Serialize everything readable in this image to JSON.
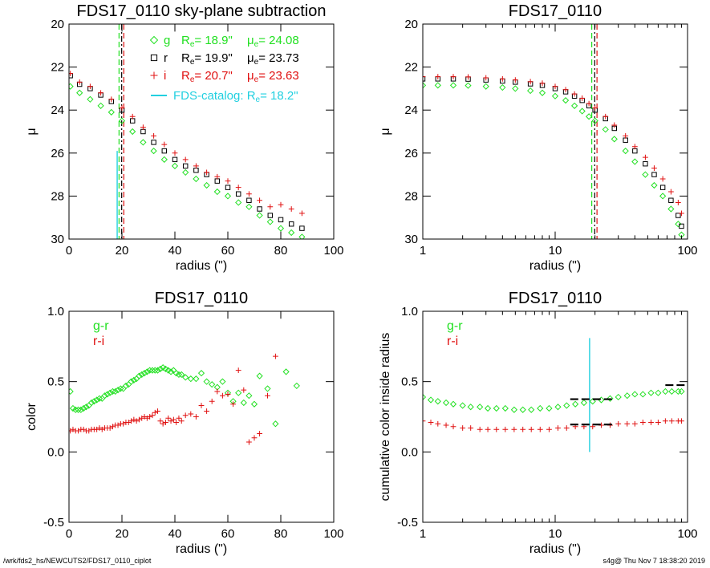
{
  "figure": {
    "footer_left": "/wrk/fds2_hs/NEWCUTS2/FDS17_0110_ciplot",
    "footer_right": "s4g@  Thu Nov  7 18:38:20 2019"
  },
  "colors": {
    "g": "#22e022",
    "r": "#000000",
    "i": "#e01010",
    "catalog": "#22d0e0",
    "axis": "#000000"
  },
  "chart_data": [
    {
      "id": "tl",
      "type": "scatter",
      "title": "FDS17_0110 sky-plane subtraction",
      "xlabel": "radius (\")",
      "ylabel": "μ",
      "xscale": "linear",
      "xlim": [
        0,
        100
      ],
      "ylim": [
        30,
        20
      ],
      "xticks": [
        0,
        20,
        40,
        60,
        80,
        100
      ],
      "xticklabels": [
        "0",
        "20",
        "40",
        "60",
        "80",
        "100"
      ],
      "yticks": [
        20,
        22,
        24,
        26,
        28,
        30
      ],
      "yticklabels": [
        "20",
        "22",
        "24",
        "26",
        "28",
        "30"
      ],
      "series": [
        {
          "name": "g",
          "marker": "diamond",
          "color_key": "g",
          "x": [
            0.5,
            4,
            8,
            12,
            16,
            20,
            24,
            28,
            32,
            36,
            40,
            44,
            48,
            52,
            56,
            60,
            64,
            68,
            72,
            76,
            80,
            84,
            88
          ],
          "y": [
            22.9,
            23.2,
            23.5,
            23.8,
            24.1,
            24.5,
            25.0,
            25.5,
            25.9,
            26.3,
            26.6,
            26.9,
            27.2,
            27.5,
            27.8,
            28.0,
            28.3,
            28.5,
            28.9,
            29.2,
            29.5,
            29.7,
            29.9
          ]
        },
        {
          "name": "r",
          "marker": "square",
          "color_key": "r",
          "x": [
            0.5,
            4,
            8,
            12,
            16,
            20,
            24,
            28,
            32,
            36,
            40,
            44,
            48,
            52,
            56,
            60,
            64,
            68,
            72,
            76,
            80,
            84,
            88
          ],
          "y": [
            22.4,
            22.8,
            23.0,
            23.3,
            23.6,
            24.0,
            24.5,
            25.0,
            25.5,
            25.9,
            26.3,
            26.6,
            26.8,
            27.0,
            27.3,
            27.6,
            27.9,
            28.2,
            28.6,
            28.9,
            29.1,
            29.3,
            29.5
          ]
        },
        {
          "name": "i",
          "marker": "plus",
          "color_key": "i",
          "x": [
            0.5,
            4,
            8,
            12,
            16,
            20,
            24,
            28,
            32,
            36,
            40,
            44,
            48,
            52,
            56,
            60,
            64,
            68,
            72,
            76,
            80,
            84,
            88
          ],
          "y": [
            22.3,
            22.7,
            22.9,
            23.2,
            23.5,
            23.9,
            24.3,
            24.8,
            25.2,
            25.6,
            26.0,
            26.3,
            26.6,
            26.9,
            27.1,
            27.3,
            27.6,
            27.9,
            28.2,
            28.5,
            28.4,
            28.6,
            28.8
          ]
        }
      ],
      "vlines": [
        {
          "x": 18.9,
          "color_key": "g",
          "style": "dash"
        },
        {
          "x": 19.9,
          "color_key": "r",
          "style": "dashdot"
        },
        {
          "x": 20.7,
          "color_key": "i",
          "style": "dash"
        }
      ],
      "catalog_line": {
        "x": 18.2,
        "y_from": 25.9,
        "y_to": 30
      },
      "legend": {
        "entries": [
          {
            "band": "g",
            "Re": "18.9\"",
            "mue": "24.08",
            "color_key": "g",
            "marker": "diamond"
          },
          {
            "band": "r",
            "Re": "19.9\"",
            "mue": "23.73",
            "color_key": "r",
            "marker": "square"
          },
          {
            "band": "i",
            "Re": "20.7\"",
            "mue": "23.63",
            "color_key": "i",
            "marker": "plus"
          }
        ],
        "catalog_label": "FDS-catalog: R",
        "catalog_value": "=  18.2\"",
        "re_prefix": "R",
        "mue_prefix": "μ",
        "sub": "e",
        "eq": "= "
      }
    },
    {
      "id": "tr",
      "type": "scatter",
      "title": "FDS17_0110",
      "xlabel": "radius (\")",
      "ylabel": "μ",
      "xscale": "log",
      "xlim": [
        1,
        100
      ],
      "ylim": [
        30,
        20
      ],
      "xticks": [
        1,
        10,
        100
      ],
      "xticklabels": [
        "1",
        "10",
        "100"
      ],
      "yticks": [
        20,
        22,
        24,
        26,
        28,
        30
      ],
      "yticklabels": [
        "20",
        "22",
        "24",
        "26",
        "28",
        "30"
      ],
      "series": [
        {
          "name": "g",
          "marker": "diamond",
          "color_key": "g",
          "x": [
            1,
            1.3,
            1.7,
            2.2,
            3,
            4,
            5,
            6.5,
            8,
            10,
            12,
            14,
            16,
            18,
            20,
            24,
            28,
            34,
            40,
            48,
            56,
            65,
            75,
            85,
            90
          ],
          "y": [
            22.85,
            22.85,
            22.85,
            22.86,
            22.9,
            22.95,
            23.0,
            23.1,
            23.2,
            23.35,
            23.55,
            23.8,
            24.05,
            24.3,
            24.5,
            24.9,
            25.35,
            25.9,
            26.4,
            27.0,
            27.5,
            28.0,
            28.6,
            29.3,
            29.8
          ]
        },
        {
          "name": "r",
          "marker": "square",
          "color_key": "r",
          "x": [
            1,
            1.3,
            1.7,
            2.2,
            3,
            4,
            5,
            6.5,
            8,
            10,
            12,
            14,
            16,
            18,
            20,
            24,
            28,
            34,
            40,
            48,
            56,
            65,
            75,
            85,
            90
          ],
          "y": [
            22.55,
            22.55,
            22.55,
            22.56,
            22.6,
            22.65,
            22.7,
            22.78,
            22.85,
            23.0,
            23.15,
            23.35,
            23.55,
            23.8,
            24.0,
            24.4,
            24.85,
            25.4,
            25.9,
            26.5,
            27.0,
            27.6,
            28.2,
            28.9,
            29.4
          ]
        },
        {
          "name": "i",
          "marker": "plus",
          "color_key": "i",
          "x": [
            1,
            1.3,
            1.7,
            2.2,
            3,
            4,
            5,
            6.5,
            8,
            10,
            12,
            14,
            16,
            18,
            20,
            24,
            28,
            34,
            40,
            48,
            56,
            65,
            75,
            85,
            90
          ],
          "y": [
            22.45,
            22.45,
            22.45,
            22.46,
            22.5,
            22.55,
            22.6,
            22.68,
            22.75,
            22.9,
            23.05,
            23.25,
            23.45,
            23.7,
            23.9,
            24.3,
            24.7,
            25.2,
            25.7,
            26.2,
            26.7,
            27.2,
            27.8,
            28.3,
            28.8
          ]
        }
      ],
      "vlines": [
        {
          "x": 18.9,
          "color_key": "g",
          "style": "dash"
        },
        {
          "x": 19.9,
          "color_key": "r",
          "style": "dashdot"
        },
        {
          "x": 20.7,
          "color_key": "i",
          "style": "dash"
        }
      ]
    },
    {
      "id": "bl",
      "type": "scatter",
      "title": "FDS17_0110",
      "xlabel": "radius (\")",
      "ylabel": "color",
      "xscale": "linear",
      "xlim": [
        0,
        100
      ],
      "ylim": [
        -0.5,
        1.0
      ],
      "xticks": [
        0,
        20,
        40,
        60,
        80,
        100
      ],
      "xticklabels": [
        "0",
        "20",
        "40",
        "60",
        "80",
        "100"
      ],
      "yticks": [
        -0.5,
        0,
        0.5,
        1.0
      ],
      "yticklabels": [
        "-0.5",
        "0.0",
        "0.5",
        "1.0"
      ],
      "series": [
        {
          "name": "g-r",
          "marker": "diamond",
          "color_key": "g",
          "x": [
            0.5,
            1.5,
            2.5,
            3.5,
            4.5,
            5.5,
            6.5,
            7.5,
            8.5,
            9.5,
            10.5,
            11.5,
            12.5,
            13.5,
            14.5,
            15.5,
            16.5,
            17.5,
            18.5,
            19.5,
            20.5,
            21.5,
            22.5,
            23.5,
            24.5,
            25.5,
            26.5,
            27.5,
            28.5,
            29.5,
            30.5,
            31.5,
            32.5,
            33.5,
            34.5,
            35.5,
            36.5,
            37.5,
            38.5,
            39.5,
            40.5,
            41.5,
            42.5,
            44,
            46,
            48,
            50,
            52,
            54,
            56,
            58,
            60,
            62,
            64,
            66,
            68,
            70,
            72,
            75,
            78,
            82,
            86
          ],
          "y": [
            0.43,
            0.31,
            0.3,
            0.3,
            0.3,
            0.31,
            0.32,
            0.33,
            0.35,
            0.36,
            0.37,
            0.38,
            0.38,
            0.4,
            0.41,
            0.42,
            0.43,
            0.43,
            0.44,
            0.45,
            0.45,
            0.47,
            0.48,
            0.5,
            0.51,
            0.52,
            0.54,
            0.55,
            0.56,
            0.57,
            0.58,
            0.58,
            0.58,
            0.58,
            0.59,
            0.6,
            0.59,
            0.58,
            0.57,
            0.58,
            0.56,
            0.55,
            0.55,
            0.53,
            0.52,
            0.52,
            0.56,
            0.5,
            0.48,
            0.46,
            0.5,
            0.42,
            0.36,
            0.42,
            0.35,
            0.4,
            0.34,
            0.54,
            0.45,
            0.2,
            0.57,
            0.47
          ]
        },
        {
          "name": "r-i",
          "marker": "plus",
          "color_key": "i",
          "x": [
            0.5,
            1.5,
            2.5,
            3.5,
            4.5,
            5.5,
            6.5,
            7.5,
            8.5,
            9.5,
            10.5,
            11.5,
            12.5,
            13.5,
            14.5,
            15.5,
            16.5,
            17.5,
            18.5,
            19.5,
            20.5,
            21.5,
            22.5,
            23.5,
            24.5,
            25.5,
            26.5,
            27.5,
            28.5,
            29.5,
            30.5,
            31.5,
            32.5,
            33.5,
            34.5,
            35.5,
            36.5,
            37.5,
            38.5,
            39.5,
            40.5,
            41.5,
            42.5,
            44,
            46,
            48,
            50,
            52,
            54,
            56,
            58,
            60,
            62,
            64,
            66,
            68,
            70,
            72,
            75,
            78
          ],
          "y": [
            0.15,
            0.16,
            0.15,
            0.15,
            0.16,
            0.16,
            0.15,
            0.15,
            0.16,
            0.16,
            0.16,
            0.17,
            0.16,
            0.17,
            0.17,
            0.17,
            0.18,
            0.19,
            0.19,
            0.2,
            0.2,
            0.21,
            0.21,
            0.22,
            0.23,
            0.22,
            0.23,
            0.24,
            0.25,
            0.24,
            0.25,
            0.26,
            0.28,
            0.29,
            0.22,
            0.2,
            0.21,
            0.24,
            0.22,
            0.23,
            0.21,
            0.24,
            0.22,
            0.26,
            0.27,
            0.25,
            0.33,
            0.29,
            0.36,
            0.43,
            0.4,
            0.41,
            0.34,
            0.58,
            0.44,
            0.07,
            0.1,
            0.13,
            0.4,
            0.68
          ]
        }
      ],
      "legend": {
        "entries": [
          {
            "label": "g-r",
            "color_key": "g"
          },
          {
            "label": "r-i",
            "color_key": "i"
          }
        ]
      }
    },
    {
      "id": "br",
      "type": "scatter",
      "title": "FDS17_0110",
      "xlabel": "radius (\")",
      "ylabel": "cumulative color inside radius",
      "xscale": "log",
      "xlim": [
        1,
        100
      ],
      "ylim": [
        -0.5,
        1.0
      ],
      "xticks": [
        1,
        10,
        100
      ],
      "xticklabels": [
        "1",
        "10",
        "100"
      ],
      "yticks": [
        -0.5,
        0,
        0.5,
        1.0
      ],
      "yticklabels": [
        "-0.5",
        "0.0",
        "0.5",
        "1.0"
      ],
      "series": [
        {
          "name": "g-r",
          "marker": "diamond",
          "color_key": "g",
          "x": [
            1,
            1.15,
            1.3,
            1.5,
            1.7,
            2,
            2.3,
            2.7,
            3.1,
            3.6,
            4.2,
            4.9,
            5.7,
            6.6,
            7.7,
            9,
            10.5,
            12.2,
            14.2,
            16.5,
            19.2,
            22.3,
            26,
            30,
            35,
            40,
            46,
            53,
            60,
            68,
            76,
            85,
            90
          ],
          "y": [
            0.39,
            0.37,
            0.36,
            0.35,
            0.34,
            0.33,
            0.32,
            0.32,
            0.31,
            0.31,
            0.31,
            0.3,
            0.3,
            0.3,
            0.31,
            0.31,
            0.32,
            0.33,
            0.34,
            0.35,
            0.36,
            0.37,
            0.38,
            0.39,
            0.4,
            0.41,
            0.41,
            0.42,
            0.42,
            0.43,
            0.43,
            0.43,
            0.43
          ]
        },
        {
          "name": "r-i",
          "marker": "plus",
          "color_key": "i",
          "x": [
            1,
            1.15,
            1.3,
            1.5,
            1.7,
            2,
            2.3,
            2.7,
            3.1,
            3.6,
            4.2,
            4.9,
            5.7,
            6.6,
            7.7,
            9,
            10.5,
            12.2,
            14.2,
            16.5,
            19.2,
            22.3,
            26,
            30,
            35,
            40,
            46,
            53,
            60,
            68,
            76,
            85,
            90
          ],
          "y": [
            0.22,
            0.21,
            0.2,
            0.19,
            0.18,
            0.17,
            0.17,
            0.16,
            0.16,
            0.16,
            0.16,
            0.16,
            0.16,
            0.16,
            0.16,
            0.16,
            0.17,
            0.17,
            0.18,
            0.18,
            0.18,
            0.19,
            0.19,
            0.2,
            0.2,
            0.2,
            0.21,
            0.21,
            0.21,
            0.22,
            0.22,
            0.22,
            0.22
          ]
        }
      ],
      "hbars": [
        {
          "x1": 13,
          "x2": 27,
          "y": 0.375
        },
        {
          "x1": 13,
          "x2": 27,
          "y": 0.195
        },
        {
          "x1": 68,
          "x2": 95,
          "y": 0.475
        }
      ],
      "catalog_line": {
        "x": 18.2,
        "y_from": 0.0,
        "y_to": 0.81
      },
      "legend": {
        "entries": [
          {
            "label": "g-r",
            "color_key": "g"
          },
          {
            "label": "r-i",
            "color_key": "i"
          }
        ]
      }
    }
  ]
}
